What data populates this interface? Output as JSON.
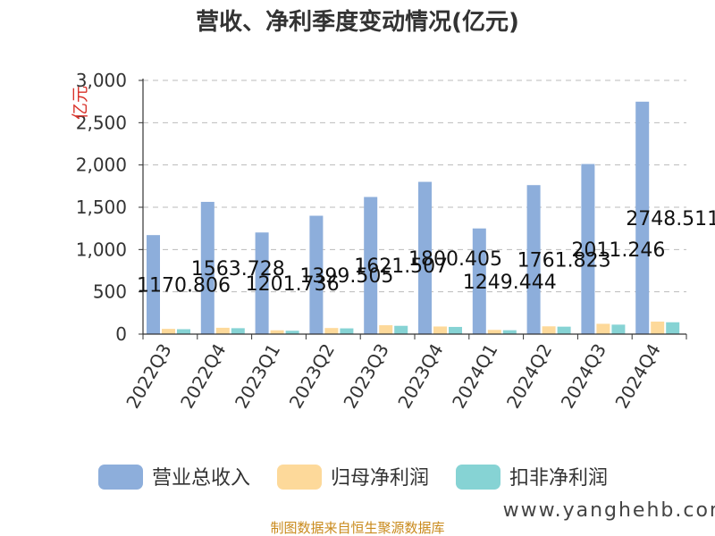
{
  "colors": {
    "revenue": "#8DAEDB",
    "parent_profit": "#FDD99A",
    "deducted_profit": "#86D3D4"
  },
  "chart_data": {
    "type": "bar",
    "title": "营收、净利季度变动情况(亿元)",
    "ylabel": "亿元",
    "ylim": [
      0,
      3000
    ],
    "yticks": [
      "0",
      "500",
      "1,000",
      "1,500",
      "2,000",
      "2,500",
      "3,000"
    ],
    "grid": true,
    "legend_position": "bottom",
    "categories": [
      "2022Q3",
      "2022Q4",
      "2023Q1",
      "2023Q2",
      "2023Q3",
      "2023Q4",
      "2024Q1",
      "2024Q2",
      "2024Q3",
      "2024Q4"
    ],
    "series": [
      {
        "name": "营业总收入",
        "values": [
          1170.806,
          1563.728,
          1201.736,
          1399.505,
          1621.507,
          1800.405,
          1249.444,
          1761.823,
          2011.246,
          2748.511
        ]
      },
      {
        "name": "归母净利润",
        "values": [
          62,
          75,
          45,
          72,
          105,
          90,
          50,
          92,
          122,
          148
        ]
      },
      {
        "name": "扣非净利润",
        "values": [
          58,
          70,
          40,
          68,
          98,
          85,
          46,
          88,
          112,
          140
        ]
      }
    ],
    "data_labels": [
      "1170.806",
      "1563.728",
      "1201.736",
      "1399.505",
      "1621.507",
      "1800.405",
      "1249.444",
      "1761.823",
      "2011.246",
      "2748.511"
    ]
  },
  "source_text": "制图数据来自恒生聚源数据库",
  "watermark": "www.yanghehb.com"
}
